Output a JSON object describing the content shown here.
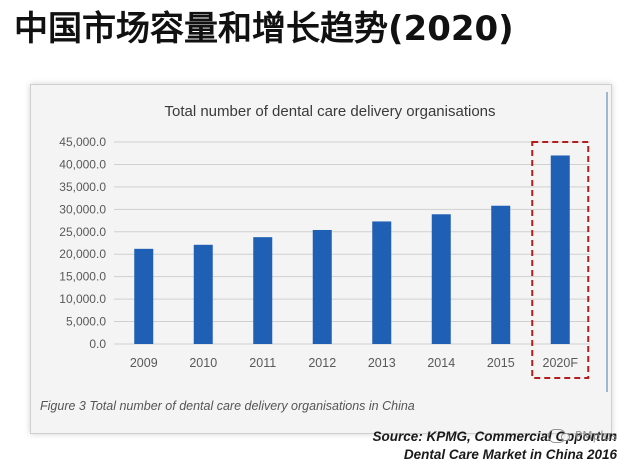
{
  "headline": "中国市场容量和增长趋势(2020)",
  "chart_data": {
    "type": "bar",
    "title": "Total number of dental care delivery organisations",
    "categories": [
      "2009",
      "2010",
      "2011",
      "2012",
      "2013",
      "2014",
      "2015",
      "2020F"
    ],
    "values": [
      21200,
      22100,
      23800,
      25400,
      27300,
      28900,
      30800,
      42000
    ],
    "ylim": [
      0,
      45000
    ],
    "yticks": [
      0,
      5000,
      10000,
      15000,
      20000,
      25000,
      30000,
      35000,
      40000,
      45000
    ],
    "ytick_labels": [
      "0.0",
      "5,000.0",
      "10,000.0",
      "15,000.0",
      "20,000.0",
      "25,000.0",
      "30,000.0",
      "35,000.0",
      "40,000.0",
      "45,000.0"
    ],
    "xlabel": "",
    "ylabel": "",
    "grid": true,
    "legend": "none",
    "highlight": {
      "category": "2020F",
      "style": "dashed-box"
    },
    "colors": {
      "bar": "#1f5fb4",
      "grid": "#d0d0d0",
      "highlight": "#b21e1e",
      "axis_text": "#595959"
    }
  },
  "caption": "Figure 3 Total number of dental care delivery organisations in China",
  "source": {
    "line1": "Source: KPMG, Commercial Opportun",
    "line2": "Dental Care Market in China 2016"
  },
  "watermark": "PMplus"
}
